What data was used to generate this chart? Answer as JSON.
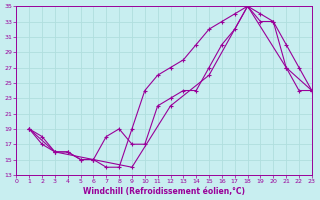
{
  "xlabel": "Windchill (Refroidissement éolien,°C)",
  "bg_color": "#c8eef0",
  "grid_color": "#b0dede",
  "line_color": "#990099",
  "xlim": [
    0,
    23
  ],
  "ylim": [
    13,
    35
  ],
  "xticks": [
    0,
    1,
    2,
    3,
    4,
    5,
    6,
    7,
    8,
    9,
    10,
    11,
    12,
    13,
    14,
    15,
    16,
    17,
    18,
    19,
    20,
    21,
    22,
    23
  ],
  "yticks": [
    13,
    15,
    17,
    19,
    21,
    23,
    25,
    27,
    29,
    31,
    33,
    35
  ],
  "line1_x": [
    1,
    2,
    3,
    4,
    5,
    6,
    7,
    8,
    9,
    10,
    11,
    12,
    13,
    14,
    15,
    16,
    17,
    18,
    19,
    20,
    21,
    22,
    23
  ],
  "line1_y": [
    19,
    18,
    16,
    16,
    15,
    15,
    14,
    14,
    19,
    24,
    26,
    27,
    28,
    30,
    32,
    33,
    34,
    35,
    34,
    33,
    27,
    24,
    24
  ],
  "line2_x": [
    1,
    2,
    3,
    4,
    5,
    6,
    7,
    8,
    9,
    10,
    11,
    12,
    13,
    14,
    15,
    16,
    17,
    18,
    19,
    20,
    21,
    22,
    23
  ],
  "line2_y": [
    19,
    17,
    16,
    16,
    15,
    15,
    18,
    19,
    17,
    17,
    22,
    23,
    24,
    24,
    27,
    30,
    32,
    35,
    33,
    33,
    30,
    27,
    24
  ],
  "line3_x": [
    1,
    3,
    6,
    9,
    12,
    15,
    18,
    21,
    23
  ],
  "line3_y": [
    19,
    16,
    15,
    14,
    22,
    26,
    35,
    27,
    24
  ]
}
